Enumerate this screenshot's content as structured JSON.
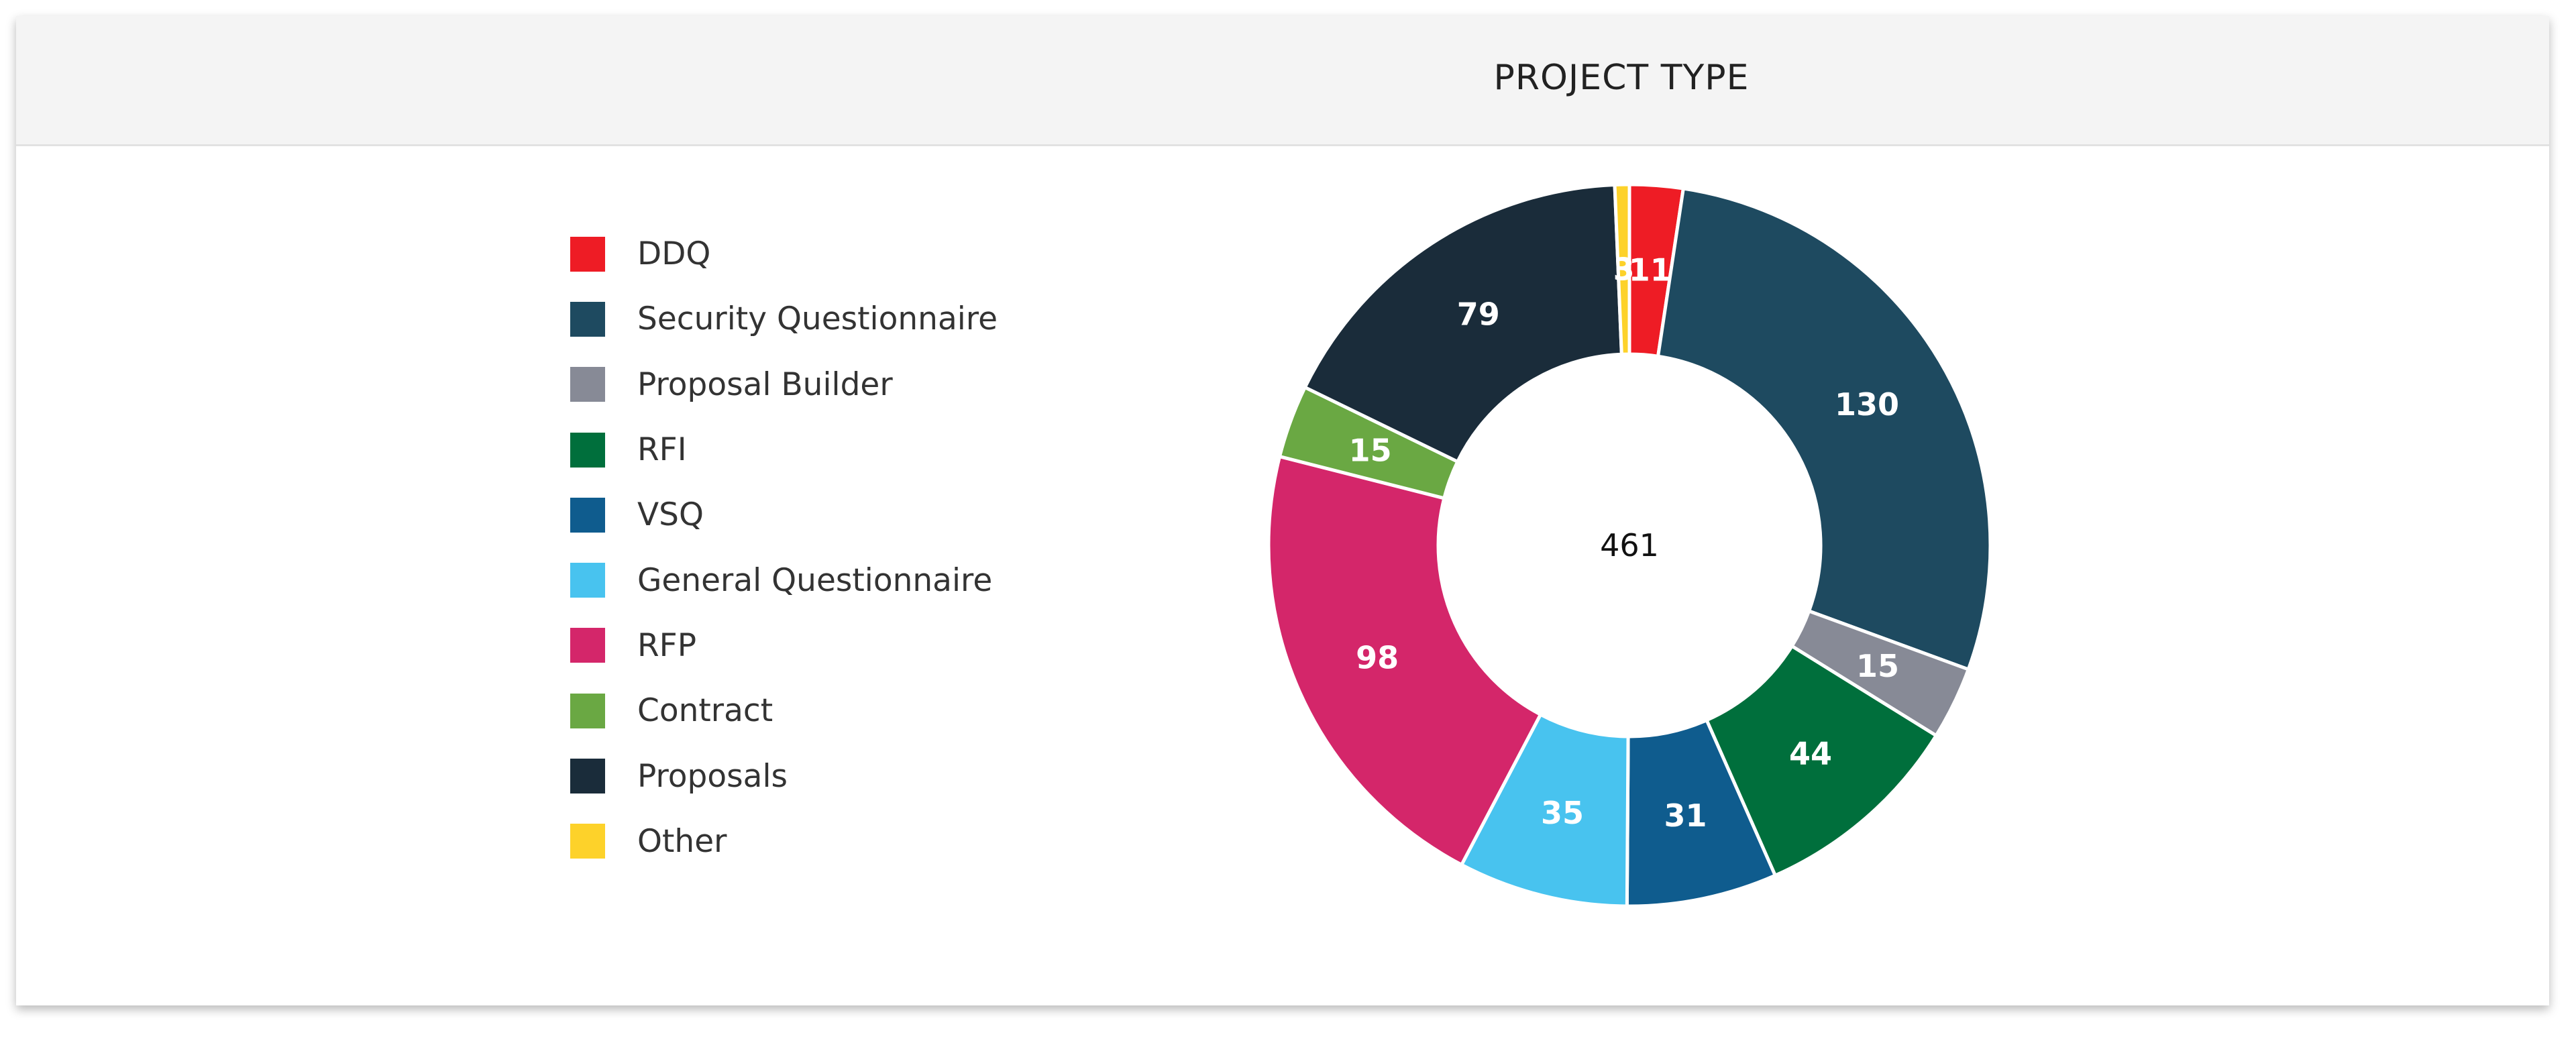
{
  "chart_data": {
    "type": "pie",
    "variant": "donut",
    "title": "PROJECT TYPE",
    "total_label": "461",
    "legend_position": "left",
    "categories": [
      "DDQ",
      "Security Questionnaire",
      "Proposal Builder",
      "RFI",
      "VSQ",
      "General Questionnaire",
      "RFP",
      "Contract",
      "Proposals",
      "Other"
    ],
    "values": [
      11,
      130,
      15,
      44,
      31,
      35,
      98,
      15,
      79,
      3
    ],
    "colors": [
      "#ee1c25",
      "#1e4a60",
      "#878a96",
      "#006f3c",
      "#0f5c8e",
      "#48c3ef",
      "#d4266a",
      "#6aa843",
      "#1a2c3a",
      "#fdd22a"
    ]
  }
}
